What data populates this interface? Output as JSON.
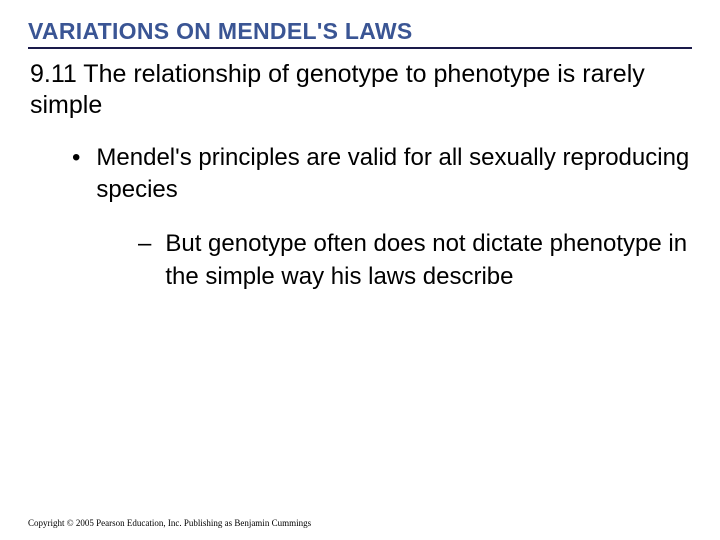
{
  "colors": {
    "header_text": "#3a5594",
    "header_underline": "#1a1a4a",
    "body_text": "#000000",
    "background": "#ffffff"
  },
  "typography": {
    "header_fontsize": 23,
    "header_weight": "bold",
    "subsection_fontsize": 25,
    "bullet_fontsize": 24,
    "copyright_fontsize": 9
  },
  "section_header": "VARIATIONS ON MENDEL'S LAWS",
  "subsection": "9.11 The relationship of genotype to phenotype is rarely simple",
  "bullets": {
    "l1_text": "Mendel's principles are valid for all sexually reproducing species",
    "l1_marker": "•",
    "l2_text": "But genotype often does not dictate phenotype in the simple way his laws describe",
    "l2_marker": "–"
  },
  "copyright": "Copyright © 2005 Pearson Education, Inc. Publishing as Benjamin Cummings"
}
